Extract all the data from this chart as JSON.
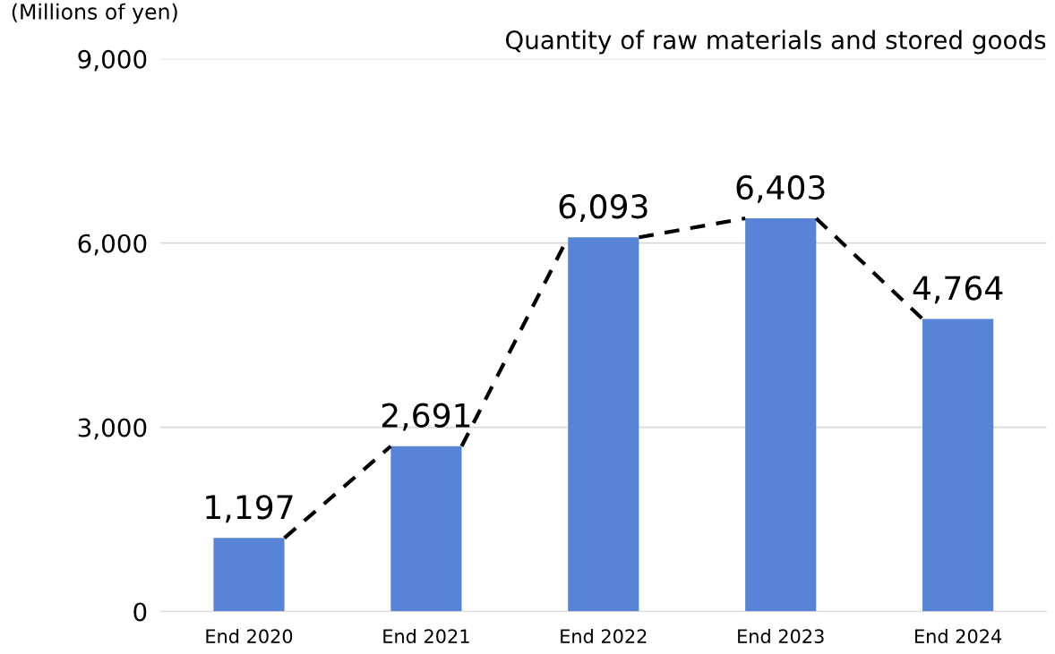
{
  "chart_data": {
    "type": "bar",
    "title": "Quantity of raw materials and stored goods",
    "ylabel": "(Millions of yen)",
    "categories": [
      "End 2020",
      "End 2021",
      "End 2022",
      "End 2023",
      "End 2024"
    ],
    "series": [
      {
        "color": "#5884d8",
        "values": [
          1197,
          2691,
          6093,
          6403,
          4764
        ]
      }
    ],
    "value_labels": [
      "1,197",
      "2,691",
      "6,093",
      "6,403",
      "4,764"
    ],
    "ylim": [
      0,
      9000
    ],
    "yticks": [
      {
        "value": 0,
        "label": "0"
      },
      {
        "value": 3000,
        "label": "3,000"
      },
      {
        "value": 6000,
        "label": "6,000"
      },
      {
        "value": 9000,
        "label": "9,000"
      }
    ],
    "grid": "y",
    "line_style": "dashed"
  }
}
